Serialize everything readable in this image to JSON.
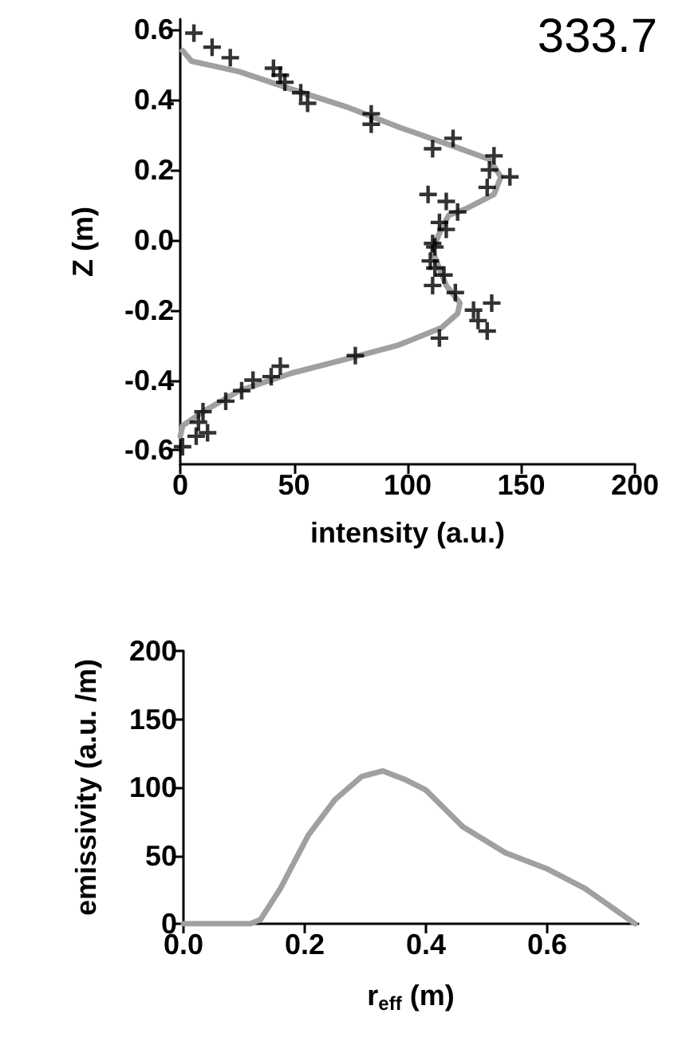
{
  "chart_data": [
    {
      "type": "scatter",
      "xlabel": "intensity (a.u.)",
      "ylabel": "Z (m)",
      "annotations": [
        "333.7"
      ],
      "xlim": [
        0,
        200
      ],
      "xticks": [
        0,
        50,
        100,
        150,
        200
      ],
      "ylim": [
        -0.64,
        0.63
      ],
      "yticks": [
        -0.6,
        -0.4,
        -0.2,
        {
          "value": 0,
          "label": "0.0"
        },
        0.2,
        0.4,
        0.6
      ],
      "series": [
        {
          "color": "#000000",
          "marker": "cross",
          "x": [
            6,
            14,
            22,
            41,
            44,
            46,
            53,
            56,
            84,
            84,
            111,
            120,
            138,
            136,
            145,
            135,
            109,
            117,
            122,
            114,
            117,
            112,
            111,
            110,
            112,
            116,
            111,
            121,
            129,
            137,
            131,
            135,
            114,
            77,
            44,
            40,
            32,
            27,
            20,
            10,
            8,
            12,
            7,
            1
          ],
          "values": [
            0.59,
            0.55,
            0.52,
            0.49,
            0.47,
            0.45,
            0.42,
            0.39,
            0.36,
            0.33,
            0.26,
            0.29,
            0.24,
            0.2,
            0.18,
            0.15,
            0.13,
            0.11,
            0.08,
            0.05,
            0.03,
            -0.02,
            -0.01,
            -0.06,
            -0.08,
            -0.1,
            -0.13,
            -0.15,
            -0.2,
            -0.18,
            -0.23,
            -0.26,
            -0.28,
            -0.33,
            -0.36,
            -0.39,
            -0.4,
            -0.43,
            -0.46,
            -0.49,
            -0.52,
            -0.55,
            -0.56,
            -0.59
          ]
        },
        {
          "type": "line",
          "color": "#a0a0a0",
          "marker": "none",
          "x": [
            1,
            5,
            26,
            49,
            73,
            97,
            119,
            136,
            141,
            138,
            126,
            118,
            114,
            111,
            112,
            117,
            123,
            122,
            115,
            96,
            73,
            49,
            26,
            10,
            1,
            0
          ],
          "values": [
            0.54,
            0.51,
            0.48,
            0.43,
            0.38,
            0.32,
            0.27,
            0.23,
            0.18,
            0.13,
            0.09,
            0.07,
            0.02,
            -0.03,
            -0.05,
            -0.13,
            -0.18,
            -0.21,
            -0.25,
            -0.3,
            -0.34,
            -0.38,
            -0.43,
            -0.49,
            -0.53,
            -0.56
          ]
        }
      ]
    },
    {
      "type": "line",
      "xlabel": "r$_{eff}$ (m)",
      "ylabel": "emissivity (a.u. /m)",
      "xlim": [
        0,
        0.75
      ],
      "xticks": [
        {
          "value": 0,
          "label": "0.0"
        },
        0.2,
        0.4,
        0.6
      ],
      "ylim": [
        0,
        200
      ],
      "yticks": [
        0,
        50,
        100,
        150,
        200
      ],
      "color": "#a0a0a0",
      "x": [
        0,
        0.11,
        0.127,
        0.16,
        0.206,
        0.25,
        0.294,
        0.329,
        0.364,
        0.4,
        0.461,
        0.531,
        0.601,
        0.662,
        0.745
      ],
      "values": [
        0,
        0,
        3,
        26,
        65,
        91,
        108,
        112,
        106,
        98,
        71,
        52,
        40,
        26,
        0
      ]
    }
  ]
}
